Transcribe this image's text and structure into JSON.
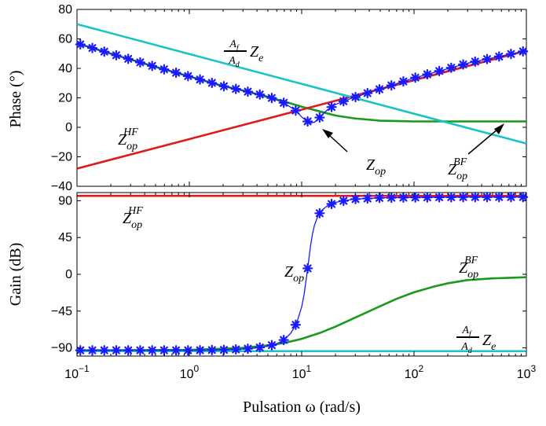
{
  "chart_data": [
    {
      "type": "line",
      "ylabel": "Phase (°)",
      "xscale": "log",
      "xlim": [
        0.1,
        1000
      ],
      "ylim": [
        -40,
        80
      ],
      "yticks": [
        "80",
        "60",
        "40",
        "20",
        "0",
        "−20",
        "−40"
      ],
      "grid": false,
      "colors": {
        "blue": "#1a1aff",
        "green": "#1a9a1a",
        "red": "#e01a1a",
        "cyan": "#1ac4c4"
      },
      "annotations": {
        "hf_main": "Z",
        "hf_sub": "op",
        "hf_sup": "HF",
        "bf_main": "Z",
        "bf_sub": "op",
        "bf_sup": "BF",
        "zop_main": "Z",
        "zop_sub": "op",
        "frac_num_main": "A",
        "frac_num_sub": "f",
        "frac_den_main": "A",
        "frac_den_sub": "d",
        "frac_tail_main": "Z",
        "frac_tail_sub": "e"
      },
      "series": [
        {
          "key": "zop",
          "color": "#1a1aff",
          "marker": "asterisk",
          "x": [
            0.1,
            0.2,
            0.5,
            1,
            2,
            3,
            5,
            7,
            9,
            10,
            11,
            12,
            13,
            14,
            15,
            17,
            20,
            25,
            30,
            50,
            100,
            300,
            1000
          ],
          "y": [
            57,
            50,
            41,
            34.5,
            28,
            25,
            21,
            16.5,
            11,
            7,
            4.5,
            3,
            3.5,
            5.5,
            8,
            12,
            15.5,
            18.5,
            20.5,
            26,
            33.5,
            43.5,
            52
          ]
        },
        {
          "key": "hf",
          "color": "#e01a1a",
          "x": [
            0.1,
            1000
          ],
          "y": [
            -28,
            52
          ]
        },
        {
          "key": "bf",
          "color": "#1a9a1a",
          "x": [
            0.1,
            0.2,
            0.5,
            1,
            2,
            3,
            5,
            7,
            10,
            15,
            20,
            30,
            50,
            100,
            200,
            1000
          ],
          "y": [
            57,
            50,
            41,
            34.5,
            28,
            25,
            20.5,
            17.5,
            14,
            10.5,
            8,
            6,
            4.5,
            4,
            4,
            4
          ]
        },
        {
          "key": "af",
          "color": "#1ac4c4",
          "x": [
            0.1,
            1000
          ],
          "y": [
            70,
            -11
          ]
        }
      ]
    },
    {
      "type": "line",
      "xlabel": "Pulsation ω (rad/s)",
      "ylabel": "Gain (dB)",
      "xscale": "log",
      "xlim": [
        0.1,
        1000
      ],
      "ylim": [
        -100,
        100
      ],
      "xticks": [
        {
          "base": "10",
          "exp": "−1"
        },
        {
          "base": "10",
          "exp": "0"
        },
        {
          "base": "10",
          "exp": "1"
        },
        {
          "base": "10",
          "exp": "2"
        },
        {
          "base": "10",
          "exp": "3"
        }
      ],
      "yticks": [
        "90",
        "45",
        "0",
        "−45",
        "−90"
      ],
      "grid": false,
      "annotations": {
        "hf_main": "Z",
        "hf_sub": "op",
        "hf_sup": "HF",
        "bf_main": "Z",
        "bf_sub": "op",
        "bf_sup": "BF",
        "zop_main": "Z",
        "zop_sub": "op",
        "frac_num_main": "A",
        "frac_num_sub": "f",
        "frac_den_main": "A",
        "frac_den_sub": "d",
        "frac_tail_main": "Z",
        "frac_tail_sub": "e"
      },
      "series": [
        {
          "key": "zop",
          "color": "#1a1aff",
          "marker": "asterisk",
          "x": [
            0.1,
            0.2,
            0.5,
            1,
            2,
            3,
            4,
            5,
            6,
            7,
            8,
            9,
            10,
            10.5,
            11,
            11.5,
            12,
            12.5,
            13,
            14,
            15,
            17,
            20,
            25,
            30,
            50,
            100,
            300,
            1000
          ],
          "y": [
            -93,
            -93,
            -93,
            -93,
            -92.5,
            -91.5,
            -90,
            -88,
            -85,
            -80,
            -72,
            -60,
            -40,
            -25,
            -5,
            15,
            35,
            50,
            60,
            72,
            78,
            84,
            88,
            90.5,
            92,
            93.5,
            94,
            94.5,
            94.5
          ]
        },
        {
          "key": "hf",
          "color": "#e01a1a",
          "x": [
            0.1,
            1000
          ],
          "y": [
            96,
            96
          ]
        },
        {
          "key": "bf",
          "color": "#1a9a1a",
          "x": [
            0.1,
            1,
            2,
            3,
            5,
            7,
            10,
            15,
            20,
            30,
            50,
            70,
            100,
            150,
            200,
            300,
            500,
            1000
          ],
          "y": [
            -93,
            -92.5,
            -91,
            -90,
            -87,
            -84,
            -79,
            -71,
            -64,
            -53,
            -39,
            -30,
            -22,
            -15,
            -11,
            -7,
            -5,
            -3.5
          ]
        },
        {
          "key": "af",
          "color": "#1ac4c4",
          "x": [
            0.1,
            1000
          ],
          "y": [
            -94,
            -94
          ]
        }
      ]
    }
  ]
}
